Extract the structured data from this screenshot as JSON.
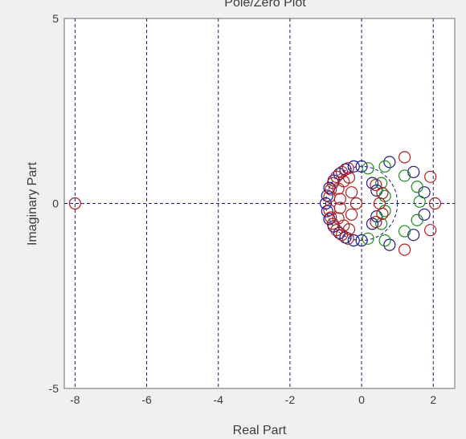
{
  "chart_data": {
    "type": "scatter",
    "title": "Pole/Zero Plot",
    "xlabel": "Real Part",
    "ylabel": "Imaginary Part",
    "xlim": [
      -8.3,
      2.6
    ],
    "ylim": [
      -5,
      5
    ],
    "x_ticks": [
      "-8",
      "-6",
      "-4",
      "-2",
      "0",
      "2"
    ],
    "y_ticks": [
      "5",
      "0",
      "-5"
    ],
    "grid": true,
    "marker": "circle",
    "colors": {
      "background": "#f0f0f0",
      "axes_face": "#ffffff",
      "grid": "#1a1a80",
      "zero_line": "#1a1a80",
      "text": "#3c3c3c"
    },
    "series": [
      {
        "color": "#1a1a8c",
        "points": [
          [
            -0.22,
            1.0
          ],
          [
            -0.22,
            -1.0
          ],
          [
            -0.45,
            0.92
          ],
          [
            -0.45,
            -0.92
          ],
          [
            -0.62,
            0.8
          ],
          [
            -0.62,
            -0.8
          ],
          [
            -0.78,
            0.62
          ],
          [
            -0.78,
            -0.62
          ],
          [
            -0.9,
            0.42
          ],
          [
            -0.9,
            -0.42
          ],
          [
            -0.96,
            0.21
          ],
          [
            -0.96,
            -0.21
          ],
          [
            -1.0,
            0.0
          ],
          [
            0.0,
            1.0
          ],
          [
            0.0,
            -1.0
          ],
          [
            0.78,
            1.12
          ],
          [
            0.78,
            -1.12
          ],
          [
            1.45,
            0.85
          ],
          [
            1.45,
            -0.85
          ],
          [
            1.75,
            0.3
          ],
          [
            1.75,
            -0.3
          ],
          [
            0.3,
            0.55
          ],
          [
            0.3,
            -0.55
          ],
          [
            0.42,
            0.35
          ],
          [
            0.42,
            -0.35
          ]
        ]
      },
      {
        "color": "#1e8c1e",
        "points": [
          [
            0.18,
            0.95
          ],
          [
            0.18,
            -0.95
          ],
          [
            0.65,
            1.0
          ],
          [
            0.65,
            -1.0
          ],
          [
            1.2,
            0.75
          ],
          [
            1.2,
            -0.75
          ],
          [
            1.55,
            0.45
          ],
          [
            1.55,
            -0.45
          ],
          [
            1.62,
            0.05
          ],
          [
            0.55,
            0.55
          ],
          [
            0.55,
            -0.55
          ],
          [
            0.65,
            0.2
          ],
          [
            0.65,
            -0.2
          ]
        ]
      },
      {
        "color": "#b41e1e",
        "points": [
          [
            -0.9,
            0.18
          ],
          [
            -0.9,
            -0.18
          ],
          [
            -0.86,
            0.38
          ],
          [
            -0.86,
            -0.38
          ],
          [
            -0.8,
            0.55
          ],
          [
            -0.8,
            -0.55
          ],
          [
            -0.7,
            0.72
          ],
          [
            -0.7,
            -0.72
          ],
          [
            -0.55,
            0.85
          ],
          [
            -0.55,
            -0.85
          ],
          [
            -0.38,
            0.95
          ],
          [
            -0.38,
            -0.95
          ],
          [
            -0.28,
            0.3
          ],
          [
            -0.28,
            -0.3
          ],
          [
            -0.5,
            0.6
          ],
          [
            -0.5,
            -0.6
          ],
          [
            -0.6,
            0.12
          ],
          [
            -0.6,
            -0.12
          ],
          [
            -0.65,
            0.4
          ],
          [
            -0.65,
            -0.4
          ],
          [
            -0.35,
            0.7
          ],
          [
            -0.35,
            -0.7
          ],
          [
            1.2,
            1.25
          ],
          [
            1.2,
            -1.25
          ],
          [
            1.92,
            0.72
          ],
          [
            1.92,
            -0.72
          ],
          [
            2.05,
            0.0
          ],
          [
            0.4,
            0.5
          ],
          [
            0.4,
            -0.5
          ],
          [
            0.58,
            0.28
          ],
          [
            0.58,
            -0.28
          ],
          [
            0.5,
            0.0
          ],
          [
            -0.15,
            0.0
          ],
          [
            -8.0,
            0.0
          ]
        ]
      }
    ]
  }
}
